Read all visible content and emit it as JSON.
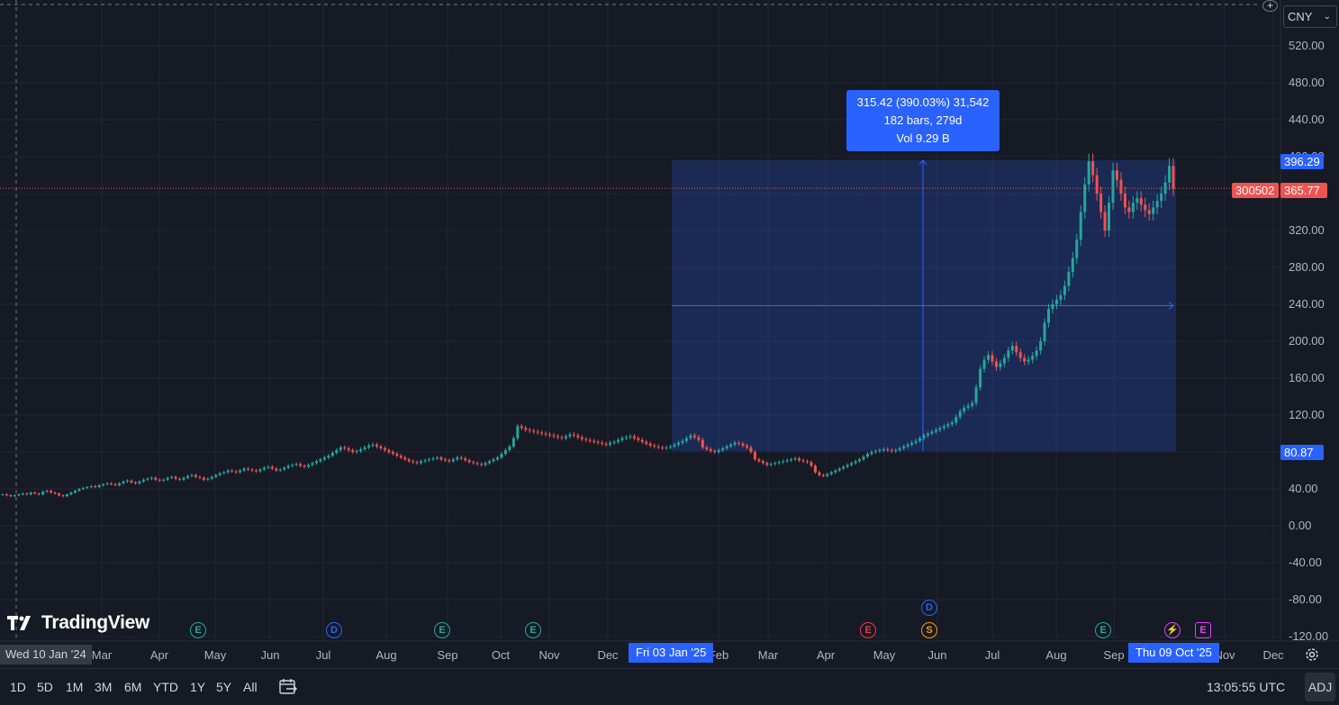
{
  "currency": {
    "label": "CNY",
    "icon": "chevron-down-icon"
  },
  "price_axis": {
    "labels": [
      "520.00",
      "480.00",
      "440.00",
      "400.00",
      "360.00",
      "320.00",
      "280.00",
      "240.00",
      "200.00",
      "160.00",
      "120.00",
      "80.00",
      "40.00",
      "0.00",
      "-40.00",
      "-80.00",
      "-120.00"
    ],
    "values": [
      520,
      480,
      440,
      400,
      360,
      320,
      280,
      240,
      200,
      160,
      120,
      80,
      40,
      0,
      -40,
      -80,
      -120
    ]
  },
  "time_axis": {
    "labels": [
      "Mar",
      "Apr",
      "May",
      "Jun",
      "Jul",
      "Aug",
      "Sep",
      "Oct",
      "Nov",
      "Dec",
      "Feb",
      "Mar",
      "Apr",
      "May",
      "Jun",
      "Jul",
      "Aug",
      "Sep",
      "Nov",
      "Dec"
    ]
  },
  "symbol": {
    "ticker": "300502",
    "last_price": "365.77",
    "last_value": 365.77
  },
  "measure": {
    "high_label": "396.29",
    "high_value": 396.29,
    "low_label": "80.87",
    "low_value": 80.87,
    "line1": "315.42 (390.03%) 31,542",
    "line2": "182 bars, 279d",
    "line3": "Vol 9.29 B",
    "start_date": "Fri 03 Jan '25",
    "end_date": "Thu 09 Oct '25"
  },
  "crosshair": {
    "date": "Wed 10 Jan '24"
  },
  "logo": {
    "text": "TradingView"
  },
  "events": [
    {
      "letter": "E",
      "color": "#22ab94",
      "kind": "earnings"
    },
    {
      "letter": "D",
      "color": "#2962ff",
      "kind": "dividend"
    },
    {
      "letter": "E",
      "color": "#22ab94",
      "kind": "earnings"
    },
    {
      "letter": "E",
      "color": "#22ab94",
      "kind": "earnings"
    },
    {
      "letter": "E",
      "color": "#f23645",
      "kind": "earnings"
    },
    {
      "letter": "D",
      "color": "#2962ff",
      "kind": "dividend"
    },
    {
      "letter": "S",
      "color": "#ff9800",
      "kind": "split"
    },
    {
      "letter": "E",
      "color": "#22ab94",
      "kind": "earnings"
    },
    {
      "letter": "⚡",
      "color": "#e040fb",
      "kind": "news"
    },
    {
      "letter": "E",
      "color": "#e040fb",
      "kind": "earnings"
    }
  ],
  "ranges": [
    "1D",
    "5D",
    "1M",
    "3M",
    "6M",
    "YTD",
    "1Y",
    "5Y",
    "All"
  ],
  "clock": "13:05:55 UTC",
  "adj": "ADJ",
  "colors": {
    "up": "#26a69a",
    "down": "#ef5350",
    "accent": "#2962ff",
    "bg": "#161a25",
    "grid": "#232632"
  },
  "chart_data": {
    "type": "candlestick",
    "series": [
      {
        "name": "300502",
        "values": [
          34,
          33,
          32,
          33,
          34,
          35,
          34,
          36,
          35,
          34,
          37,
          38,
          36,
          35,
          33,
          32,
          34,
          36,
          38,
          40,
          41,
          42,
          43,
          42,
          44,
          45,
          46,
          45,
          44,
          46,
          48,
          49,
          47,
          46,
          48,
          50,
          51,
          52,
          50,
          49,
          50,
          52,
          53,
          51,
          50,
          52,
          54,
          55,
          53,
          52,
          50,
          51,
          53,
          55,
          57,
          58,
          60,
          59,
          58,
          60,
          62,
          61,
          60,
          59,
          61,
          63,
          64,
          62,
          60,
          61,
          63,
          65,
          66,
          67,
          65,
          64,
          66,
          68,
          70,
          72,
          74,
          76,
          79,
          82,
          85,
          84,
          82,
          80,
          81,
          83,
          85,
          87,
          88,
          86,
          84,
          82,
          80,
          78,
          76,
          74,
          72,
          70,
          69,
          68,
          70,
          71,
          72,
          73,
          74,
          72,
          71,
          70,
          72,
          74,
          73,
          71,
          69,
          68,
          67,
          66,
          68,
          70,
          72,
          74,
          78,
          82,
          86,
          95,
          108,
          106,
          104,
          103,
          102,
          101,
          100,
          99,
          98,
          97,
          96,
          95,
          97,
          99,
          98,
          96,
          94,
          93,
          92,
          91,
          90,
          89,
          88,
          90,
          91,
          93,
          95,
          96,
          97,
          95,
          93,
          91,
          89,
          87,
          86,
          85,
          84,
          85,
          86,
          88,
          90,
          92,
          95,
          98,
          96,
          93,
          85,
          83,
          81,
          80,
          82,
          84,
          86,
          88,
          90,
          89,
          87,
          85,
          80,
          72,
          70,
          68,
          66,
          67,
          68,
          69,
          70,
          71,
          72,
          73,
          71,
          70,
          69,
          65,
          58,
          55,
          54,
          56,
          58,
          60,
          62,
          64,
          66,
          68,
          70,
          72,
          75,
          78,
          80,
          81,
          82,
          83,
          82,
          81,
          82,
          84,
          86,
          88,
          90,
          92,
          95,
          98,
          100,
          102,
          104,
          106,
          108,
          110,
          112,
          118,
          124,
          128,
          130,
          133,
          150,
          170,
          180,
          185,
          178,
          172,
          176,
          182,
          190,
          195,
          188,
          182,
          178,
          180,
          184,
          190,
          200,
          220,
          235,
          240,
          245,
          250,
          260,
          275,
          290,
          310,
          340,
          370,
          395,
          380,
          360,
          340,
          320,
          350,
          385,
          375,
          360,
          345,
          340,
          350,
          355,
          348,
          342,
          338,
          345,
          352,
          360,
          372,
          390,
          365
        ]
      }
    ],
    "price_range": [
      -120,
      520
    ],
    "current": 365.77
  }
}
